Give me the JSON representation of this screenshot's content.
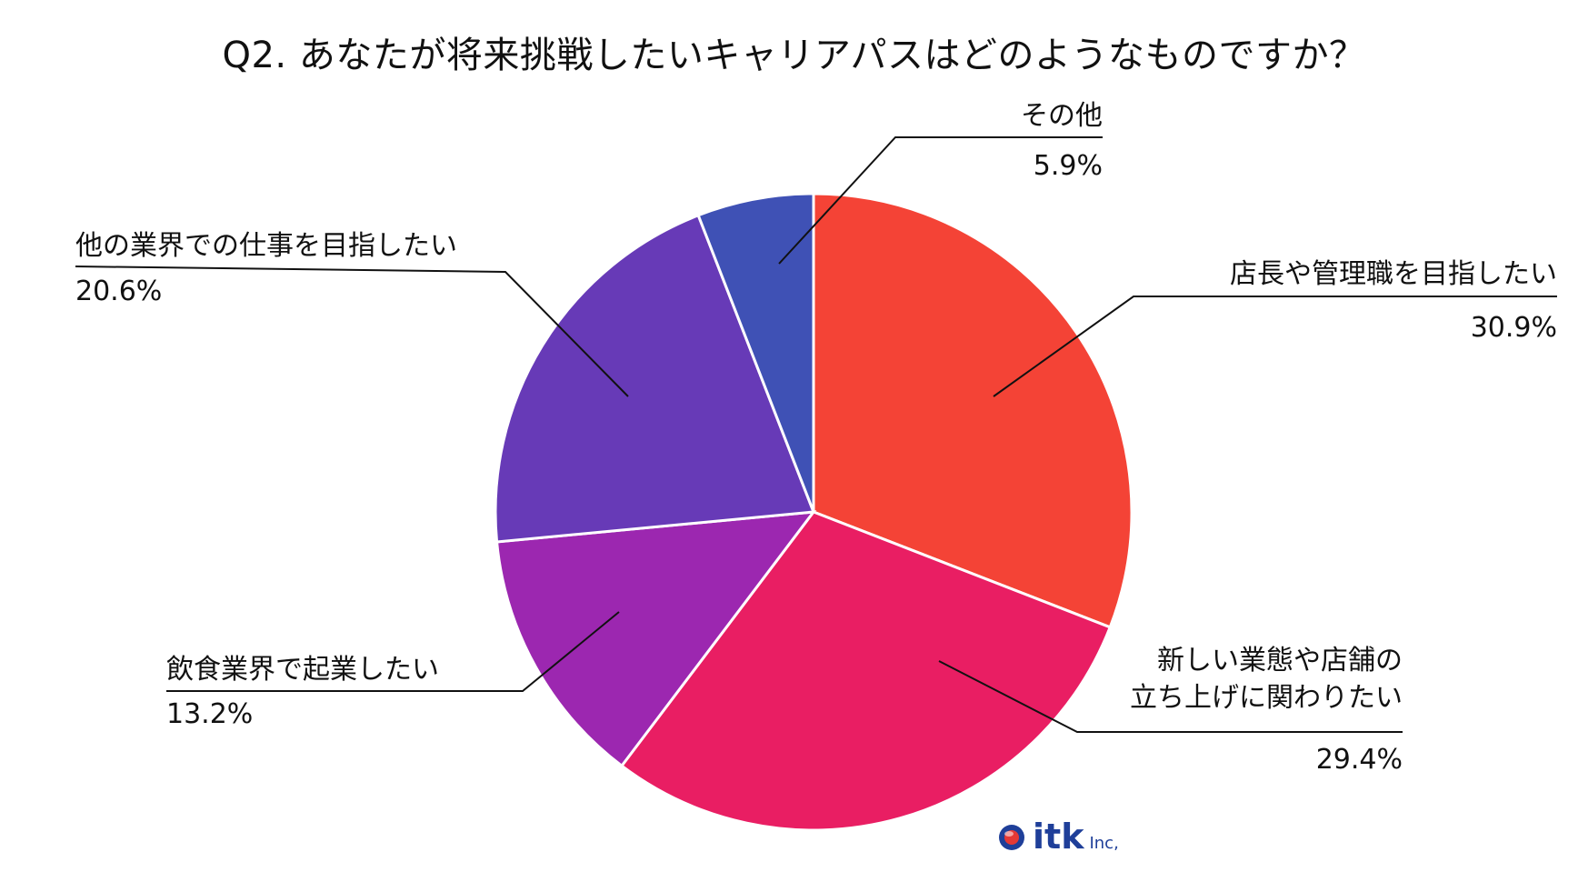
{
  "chart_data": {
    "type": "pie",
    "title": "Q2. あなたが将来挑戦したいキャリアパスはどのようなものですか？",
    "start": "12 o'clock, clockwise",
    "slices": [
      {
        "label_lines": [
          "店長や管理職を目指したい"
        ],
        "value": 30.9,
        "value_label": "30.9%",
        "color": "#f44336"
      },
      {
        "label_lines": [
          "新しい業態や店舗の",
          "立ち上げに関わりたい"
        ],
        "value": 29.4,
        "value_label": "29.4%",
        "color": "#e91e63"
      },
      {
        "label_lines": [
          "飲食業界で起業したい"
        ],
        "value": 13.2,
        "value_label": "13.2%",
        "color": "#9c27b0"
      },
      {
        "label_lines": [
          "他の業界での仕事を目指したい"
        ],
        "value": 20.6,
        "value_label": "20.6%",
        "color": "#673ab7"
      },
      {
        "label_lines": [
          "その他"
        ],
        "value": 5.9,
        "value_label": "5.9%",
        "color": "#3f51b5"
      }
    ]
  },
  "logo": {
    "text": "itk",
    "suffix": "Inc,",
    "colors": {
      "primary": "#1f3f99",
      "accent": "#e53935"
    }
  }
}
